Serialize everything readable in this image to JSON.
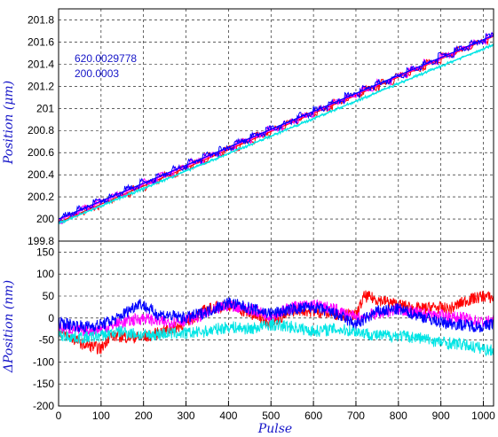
{
  "chart_data": [
    {
      "type": "line",
      "panel": "top",
      "xlabel": "Pulse",
      "ylabel": "Position (μm)",
      "xlim": [
        0,
        1024
      ],
      "ylim": [
        199.8,
        201.9
      ],
      "xticks": [
        "0",
        "100",
        "200",
        "300",
        "400",
        "500",
        "600",
        "700",
        "800",
        "900",
        "1000"
      ],
      "yticks": [
        "199.8",
        "200",
        "200.2",
        "200.4",
        "200.6",
        "200.8",
        "201",
        "201.2",
        "201.4",
        "201.6",
        "201.8"
      ],
      "grid": true,
      "annotations": [
        "620.0029778",
        "200.0003"
      ],
      "series": [
        {
          "color": "#ff0000",
          "start": 199.97,
          "slope": 0.001642
        },
        {
          "color": "#ff00ff",
          "start": 199.99,
          "slope": 0.001628
        },
        {
          "color": "#0000ff",
          "start": 200.0,
          "slope": 0.001622
        },
        {
          "color": "#00e5e5",
          "start": 199.96,
          "slope": 0.00158
        }
      ],
      "staircase": {
        "x": [
          0,
          40,
          100,
          150,
          200,
          250,
          300,
          350,
          400,
          450,
          500,
          560,
          600,
          650,
          700,
          750,
          800,
          850,
          900,
          950,
          1000,
          1024
        ],
        "y": [
          200.0,
          200.05,
          200.2,
          200.3,
          200.35,
          200.45,
          200.55,
          200.65,
          200.75,
          200.8,
          200.85,
          201.0,
          201.05,
          201.15,
          201.25,
          201.35,
          201.45,
          201.55,
          201.6,
          201.7,
          201.8,
          201.8
        ]
      }
    },
    {
      "type": "line",
      "panel": "bottom",
      "xlabel": "Pulse",
      "ylabel": "ΔPosition (nm)",
      "xlim": [
        0,
        1024
      ],
      "ylim": [
        -200,
        175
      ],
      "yticks": [
        "-200",
        "-150",
        "-100",
        "-50",
        "0",
        "50",
        "100",
        "150"
      ],
      "grid": true,
      "series": [
        {
          "color": "#ff0000",
          "x": [
            0,
            60,
            100,
            120,
            200,
            280,
            350,
            400,
            450,
            500,
            560,
            600,
            650,
            700,
            720,
            760,
            800,
            850,
            880,
            920,
            960,
            1000,
            1024
          ],
          "y": [
            -30,
            -60,
            -70,
            -40,
            -45,
            -20,
            20,
            30,
            10,
            -10,
            20,
            15,
            10,
            5,
            50,
            40,
            30,
            20,
            25,
            20,
            40,
            50,
            45
          ]
        },
        {
          "color": "#ff00ff",
          "x": [
            0,
            60,
            100,
            150,
            200,
            250,
            300,
            350,
            400,
            450,
            500,
            550,
            600,
            650,
            700,
            750,
            800,
            850,
            900,
            950,
            1000,
            1024
          ],
          "y": [
            -20,
            -30,
            -25,
            -10,
            0,
            -10,
            -5,
            10,
            30,
            20,
            5,
            25,
            30,
            20,
            0,
            10,
            20,
            10,
            5,
            0,
            -10,
            -5
          ]
        },
        {
          "color": "#0000ff",
          "x": [
            0,
            60,
            100,
            140,
            190,
            230,
            300,
            350,
            400,
            440,
            500,
            550,
            600,
            650,
            700,
            750,
            800,
            850,
            900,
            950,
            1000,
            1024
          ],
          "y": [
            -10,
            -20,
            -15,
            0,
            35,
            10,
            0,
            15,
            35,
            25,
            10,
            20,
            25,
            10,
            -15,
            15,
            20,
            5,
            -10,
            -15,
            -20,
            -10
          ]
        },
        {
          "color": "#00e5e5",
          "x": [
            0,
            60,
            100,
            150,
            200,
            250,
            300,
            350,
            400,
            450,
            500,
            550,
            600,
            650,
            700,
            750,
            800,
            850,
            900,
            950,
            1000,
            1024
          ],
          "y": [
            -40,
            -45,
            -40,
            -30,
            -40,
            -35,
            -35,
            -30,
            -20,
            -25,
            -15,
            -20,
            -30,
            -25,
            -30,
            -40,
            -40,
            -45,
            -55,
            -60,
            -70,
            -75
          ]
        }
      ]
    }
  ]
}
